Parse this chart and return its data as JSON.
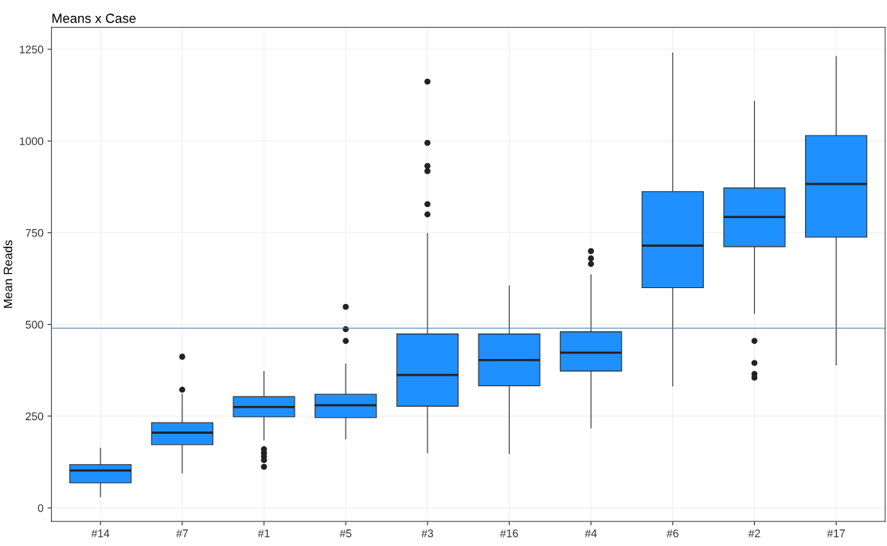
{
  "chart_data": {
    "type": "box",
    "title": "Means x Case",
    "ylabel": "Mean Reads",
    "categories": [
      "#14",
      "#7",
      "#1",
      "#5",
      "#3",
      "#16",
      "#4",
      "#6",
      "#2",
      "#17"
    ],
    "color": "#1e90ff",
    "boxes": [
      {
        "low": 30,
        "q1": 68,
        "median": 102,
        "q3": 118,
        "high": 162
      },
      {
        "low": 95,
        "q1": 172,
        "median": 205,
        "q3": 232,
        "high": 310,
        "outliers": [
          322,
          412
        ]
      },
      {
        "low": 185,
        "q1": 248,
        "median": 275,
        "q3": 303,
        "high": 372,
        "outliers": [
          160,
          150,
          140,
          130,
          112
        ]
      },
      {
        "low": 188,
        "q1": 246,
        "median": 280,
        "q3": 310,
        "high": 392,
        "outliers": [
          455,
          487,
          548
        ]
      },
      {
        "low": 150,
        "q1": 277,
        "median": 362,
        "q3": 474,
        "high": 748,
        "outliers": [
          800,
          828,
          918,
          932,
          995,
          1162
        ]
      },
      {
        "low": 148,
        "q1": 333,
        "median": 403,
        "q3": 474,
        "high": 605
      },
      {
        "low": 218,
        "q1": 373,
        "median": 423,
        "q3": 480,
        "high": 635,
        "outliers": [
          665,
          680,
          700
        ]
      },
      {
        "low": 332,
        "q1": 600,
        "median": 715,
        "q3": 862,
        "high": 1240
      },
      {
        "low": 530,
        "q1": 712,
        "median": 793,
        "q3": 872,
        "high": 1108,
        "outliers": [
          455,
          395,
          365,
          355
        ]
      },
      {
        "low": 390,
        "q1": 738,
        "median": 883,
        "q3": 1015,
        "high": 1230
      }
    ],
    "ylim": [
      -37,
      1310
    ],
    "yticks": [
      0,
      250,
      500,
      750,
      1000,
      1250
    ],
    "ref_lines": [
      {
        "axis": "y",
        "value": 490,
        "color": "#4a7fa8"
      }
    ],
    "grid": true
  }
}
